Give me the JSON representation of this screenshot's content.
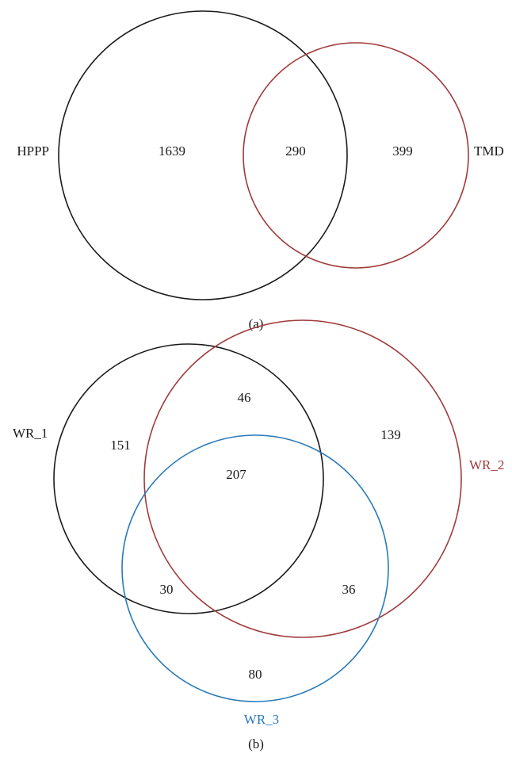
{
  "panel_a": {
    "label": "(a)",
    "sets": [
      {
        "name": "HPPP",
        "color": "#1a1a1a"
      },
      {
        "name": "TMD",
        "color": "#a03a3a"
      }
    ],
    "regions": {
      "hppp_only": "1639",
      "both": "290",
      "tmd_only": "399"
    }
  },
  "panel_b": {
    "label": "(b)",
    "sets": [
      {
        "name": "WR_1",
        "color": "#1a1a1a"
      },
      {
        "name": "WR_2",
        "color": "#a03a3a"
      },
      {
        "name": "WR_3",
        "color": "#2a7ab8"
      }
    ],
    "regions": {
      "wr1_wr2_only": "46",
      "wr1_only": "151",
      "wr2_only": "139",
      "all_three": "207",
      "wr1_wr3_only": "30",
      "wr2_wr3_only": "36",
      "wr3_only": "80"
    }
  }
}
